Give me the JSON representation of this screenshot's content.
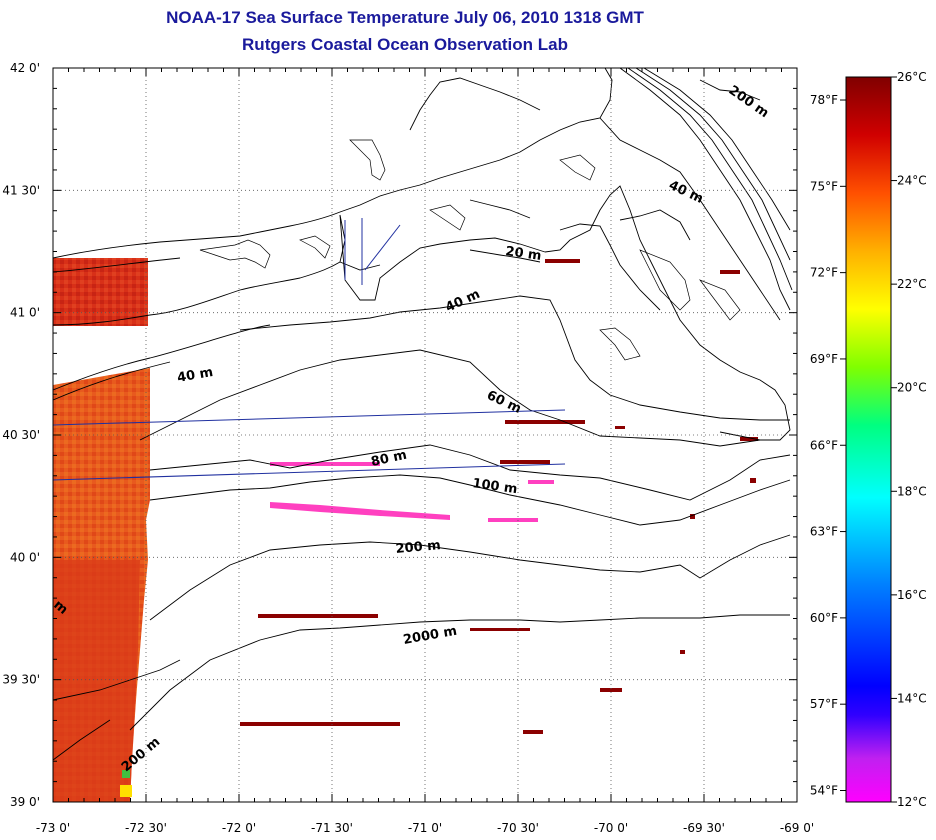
{
  "header": {
    "title": "NOAA-17 Sea Surface Temperature July 06, 2010 1318 GMT",
    "subtitle": "Rutgers Coastal Ocean Observation Lab"
  },
  "map": {
    "lat_range": [
      39.0,
      42.0
    ],
    "lon_range": [
      -73.0,
      -69.0
    ],
    "x_ticks": [
      "-73 0'",
      "-72 30'",
      "-72 0'",
      "-71 30'",
      "-71 0'",
      "-70 30'",
      "-70 0'",
      "-69 30'",
      "-69 0'"
    ],
    "y_ticks": [
      "42 0'",
      "41 30'",
      "41 0'",
      "40 30'",
      "40 0'",
      "39 30'",
      "39 0'"
    ],
    "grid": "dotted",
    "contour_labels": [
      "200 m",
      "40 m",
      "20 m",
      "40 m",
      "40 m",
      "60 m",
      "80 m",
      "100 m",
      "200 m",
      "2000 m",
      "200 m",
      "m"
    ],
    "fahrenheit_ticks": [
      "78°F",
      "75°F",
      "72°F",
      "69°F",
      "66°F",
      "63°F",
      "60°F",
      "57°F",
      "54°F"
    ]
  },
  "colorbar": {
    "min_c": 12,
    "max_c": 26,
    "labels": [
      "26°C",
      "24°C",
      "22°C",
      "20°C",
      "18°C",
      "16°C",
      "14°C",
      "12°C"
    ],
    "colors": [
      "#ff00ff",
      "#8000c0",
      "#0000ff",
      "#0080ff",
      "#00ffff",
      "#00ff80",
      "#80ff00",
      "#ffff00",
      "#ffc000",
      "#ff8000",
      "#ff3000",
      "#c00000",
      "#800000"
    ]
  }
}
